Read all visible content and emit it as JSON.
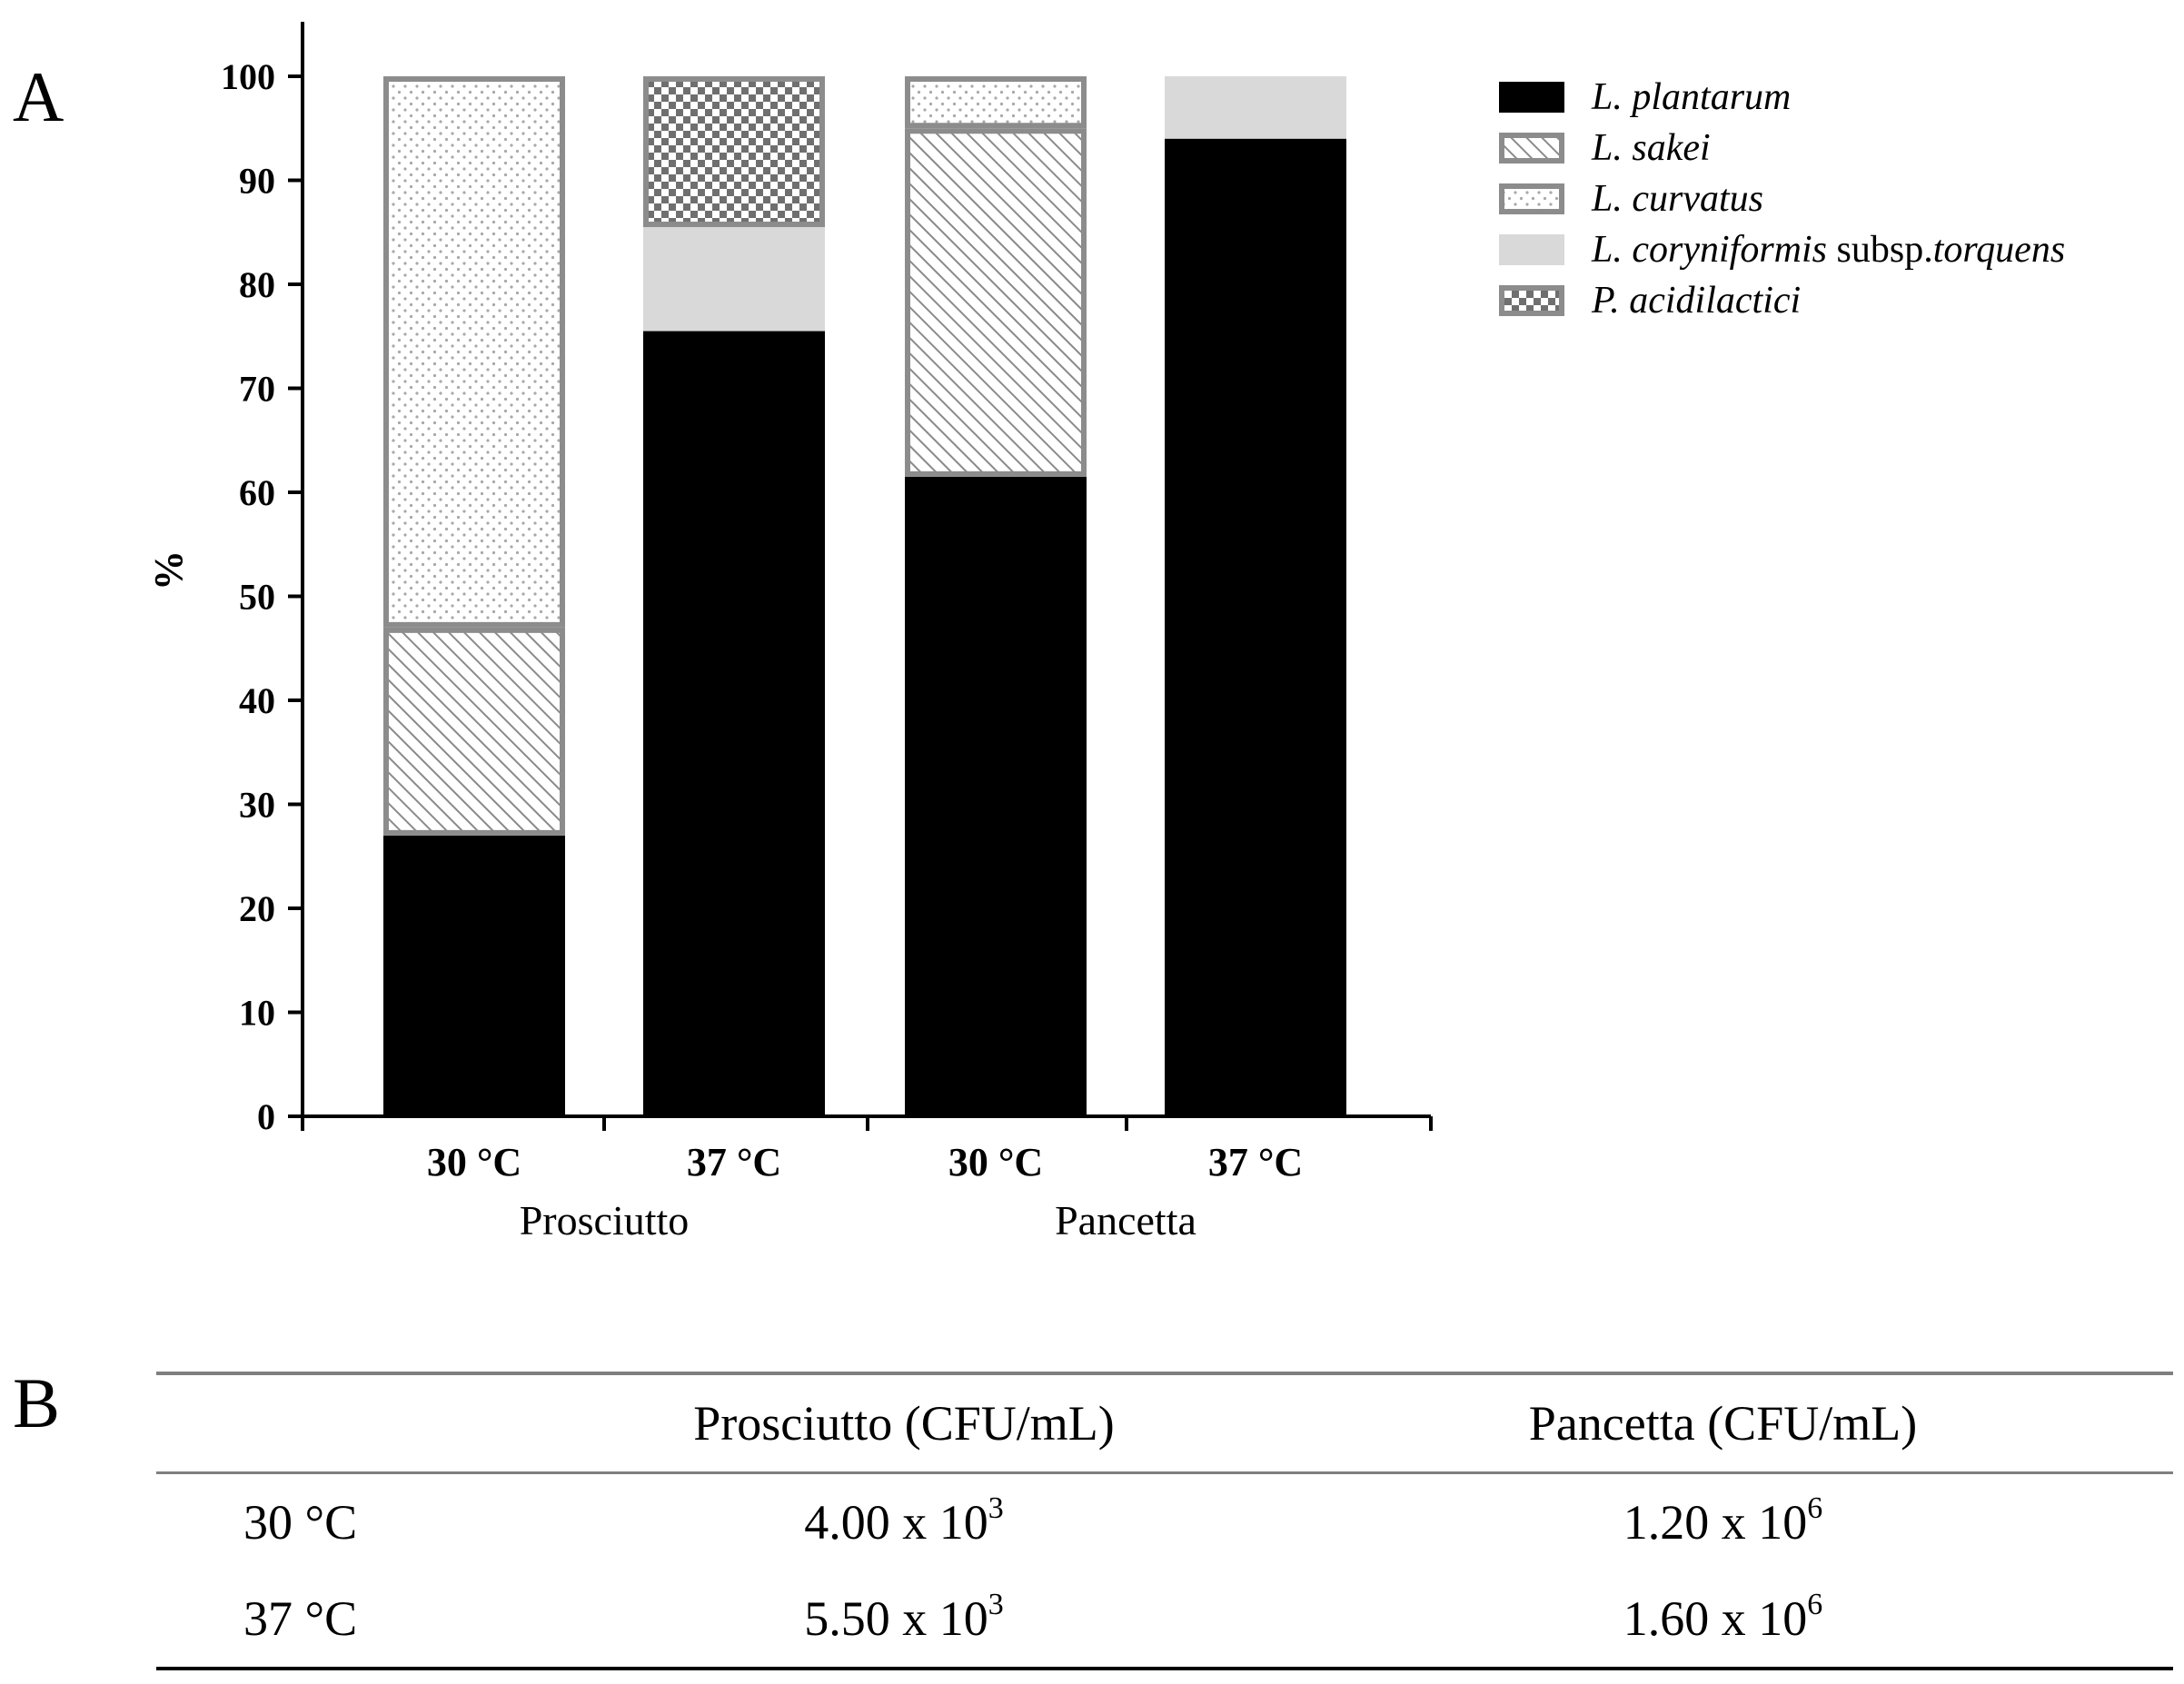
{
  "panels": {
    "a": "A",
    "b": "B"
  },
  "chart_data": {
    "type": "bar",
    "stacked": true,
    "ylabel": "%",
    "ylim": [
      0,
      100
    ],
    "yticks": [
      0,
      10,
      20,
      30,
      40,
      50,
      60,
      70,
      80,
      90,
      100
    ],
    "categories": [
      "30 °C",
      "37 °C",
      "30 °C",
      "37 °C"
    ],
    "groups": [
      {
        "label": "Prosciutto",
        "categories": [
          0,
          1
        ]
      },
      {
        "label": "Pancetta",
        "categories": [
          2,
          3
        ]
      }
    ],
    "legend_position": "top-right",
    "series": [
      {
        "name": "L. plantarum",
        "name_main": "L. plantarum",
        "name_extra": "",
        "name_extra_italic": "",
        "pattern": "solid",
        "color": "#000000",
        "outline": "#000000",
        "values": [
          27,
          75.5,
          61.5,
          94
        ]
      },
      {
        "name": "L. sakei",
        "name_main": "L. sakei",
        "name_extra": "",
        "name_extra_italic": "",
        "pattern": "diagonal-hatch",
        "color": "#ffffff",
        "outline": "#8c8c8c",
        "values": [
          20,
          0,
          33.5,
          0
        ]
      },
      {
        "name": "L. curvatus",
        "name_main": "L. curvatus",
        "name_extra": "",
        "name_extra_italic": "",
        "pattern": "dots",
        "color": "#ffffff",
        "outline": "#8c8c8c",
        "values": [
          53,
          0,
          5,
          0
        ]
      },
      {
        "name": "L. coryniformis subsp.torquens",
        "name_main": "L. coryniformis",
        "name_extra": " subsp.",
        "name_extra_italic": "torquens",
        "pattern": "solid",
        "color": "#d9d9d9",
        "outline": "#d9d9d9",
        "values": [
          0,
          10,
          0,
          6
        ]
      },
      {
        "name": "P. acidilactici",
        "name_main": "P. acidilactici",
        "name_extra": "",
        "name_extra_italic": "",
        "pattern": "checker",
        "color": "#ffffff",
        "outline": "#8c8c8c",
        "values": [
          0,
          14.5,
          0,
          0
        ]
      }
    ]
  },
  "table": {
    "headers": [
      "",
      "Prosciutto (CFU/mL)",
      "Pancetta (CFU/mL)"
    ],
    "rows": [
      {
        "label": "30 °C",
        "prosciutto": {
          "mantissa": "4.00 x 10",
          "exp": "3"
        },
        "pancetta": {
          "mantissa": "1.20 x 10",
          "exp": "6"
        }
      },
      {
        "label": "37 °C",
        "prosciutto": {
          "mantissa": "5.50 x 10",
          "exp": "3"
        },
        "pancetta": {
          "mantissa": "1.60 x 10",
          "exp": "6"
        }
      }
    ]
  }
}
